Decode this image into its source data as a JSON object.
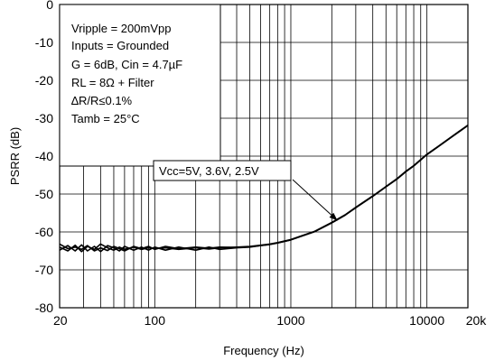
{
  "chart_data": {
    "type": "line",
    "x_scale": "log",
    "xlim": [
      20,
      20000
    ],
    "ylim": [
      -80,
      0
    ],
    "xlabel": "Frequency (Hz)",
    "ylabel": "PSRR (dB)",
    "x_tick_labels": [
      {
        "value": 20,
        "label": "20"
      },
      {
        "value": 100,
        "label": "100"
      },
      {
        "value": 1000,
        "label": "1000"
      },
      {
        "value": 10000,
        "label": "10000"
      },
      {
        "value": 20000,
        "label": "20k"
      }
    ],
    "y_ticks": [
      0,
      -10,
      -20,
      -30,
      -40,
      -50,
      -60,
      -70,
      -80
    ],
    "grid": true,
    "conditions": [
      "Vripple = 200mVpp",
      "Inputs = Grounded",
      "G = 6dB, Cin = 4.7µF",
      "RL = 8Ω + Filter",
      "∆R/R≤0.1%",
      "Tamb  = 25°C"
    ],
    "callout": "Vcc=5V, 3.6V, 2.5V",
    "callout_target": {
      "x": 2200,
      "y": -57
    },
    "series": [
      {
        "x": [
          20,
          23,
          26,
          29,
          32,
          36,
          40,
          45,
          50,
          55,
          60,
          70,
          80,
          90,
          100,
          120,
          150,
          200,
          250,
          300,
          400,
          500,
          600,
          700,
          800,
          1000,
          1200,
          1500,
          2000,
          2500,
          3000,
          4000,
          5000,
          6000,
          7000,
          8000,
          10000,
          12000,
          15000,
          20000
        ],
        "values": [
          -64,
          -65,
          -63.5,
          -65.2,
          -63.8,
          -64.6,
          -63.2,
          -64.2,
          -64.8,
          -64,
          -64.6,
          -64,
          -64.6,
          -64.2,
          -64.4,
          -64.2,
          -64.6,
          -64.2,
          -64.5,
          -64.2,
          -64,
          -63.8,
          -63.5,
          -63.2,
          -62.8,
          -62,
          -61,
          -59.8,
          -57.5,
          -55.5,
          -53.5,
          -50.5,
          -48,
          -46,
          -44,
          -42.5,
          -39.5,
          -37.5,
          -35,
          -31.8
        ]
      },
      {
        "x": [
          20,
          23,
          26,
          29,
          32,
          36,
          40,
          45,
          50,
          55,
          60,
          70,
          80,
          90,
          100,
          120,
          150,
          200,
          250,
          300,
          400,
          500,
          600,
          700,
          800,
          1000,
          1200,
          1500,
          2000,
          2500,
          3000,
          4000,
          5000,
          6000,
          7000,
          8000,
          10000,
          12000,
          15000,
          20000
        ],
        "values": [
          -64.8,
          -63.6,
          -65,
          -63.4,
          -65,
          -63.8,
          -65.2,
          -63.6,
          -64.2,
          -65,
          -63.8,
          -64.8,
          -64,
          -64.8,
          -64,
          -64.8,
          -64,
          -64.8,
          -64,
          -64.6,
          -64.2,
          -64,
          -63.6,
          -63.3,
          -62.9,
          -62.1,
          -61.1,
          -59.9,
          -57.6,
          -55.6,
          -53.6,
          -50.6,
          -48.1,
          -46.1,
          -44.1,
          -42.6,
          -39.6,
          -37.6,
          -35.1,
          -31.9
        ]
      },
      {
        "x": [
          20,
          23,
          26,
          29,
          32,
          36,
          40,
          45,
          50,
          55,
          60,
          70,
          80,
          90,
          100,
          120,
          150,
          200,
          250,
          300,
          400,
          500,
          600,
          700,
          800,
          1000,
          1200,
          1500,
          2000,
          2500,
          3000,
          4000,
          5000,
          6000,
          7000,
          8000,
          10000,
          12000,
          15000,
          20000
        ],
        "values": [
          -63.2,
          -64.4,
          -64,
          -64.6,
          -63.6,
          -65,
          -64.2,
          -64.9,
          -63.8,
          -64.4,
          -65,
          -63.8,
          -64.4,
          -63.8,
          -64.6,
          -63.8,
          -64.4,
          -64,
          -64.3,
          -64,
          -64.1,
          -63.9,
          -63.6,
          -63.3,
          -62.9,
          -62.1,
          -61.1,
          -59.9,
          -57.6,
          -55.6,
          -53.6,
          -50.6,
          -48.1,
          -46.1,
          -44.1,
          -42.6,
          -39.6,
          -37.6,
          -35.1,
          -31.9
        ]
      }
    ]
  }
}
